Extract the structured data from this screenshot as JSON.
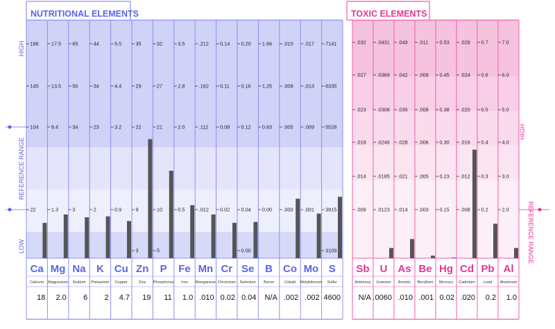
{
  "nutritional": {
    "title": "NUTRITIONAL ELEMENTS",
    "side_labels": {
      "high": "HIGH",
      "reference_range": "REFERENCE   RANGE",
      "low": "LOW"
    },
    "elements": [
      {
        "symbol": "Ca",
        "name": "Calcium",
        "value": "18",
        "ticks": [
          "186",
          "145",
          "104",
          "22"
        ]
      },
      {
        "symbol": "Mg",
        "name": "Magnesium",
        "value": "2.0",
        "ticks": [
          "17.5",
          "13.5",
          "9.4",
          "1.3"
        ]
      },
      {
        "symbol": "Na",
        "name": "Sodium",
        "value": "6",
        "ticks": [
          "65",
          "50",
          "34",
          "3"
        ]
      },
      {
        "symbol": "K",
        "name": "Potassium",
        "value": "2",
        "ticks": [
          "44",
          "34",
          "23",
          "2"
        ]
      },
      {
        "symbol": "Cu",
        "name": "Copper",
        "value": "4.7",
        "ticks": [
          "5.5",
          "4.4",
          "3.2",
          "0.9"
        ]
      },
      {
        "symbol": "Zn",
        "name": "Zinc",
        "value": "19",
        "ticks": [
          "35",
          "29",
          "22",
          "9",
          "3"
        ]
      },
      {
        "symbol": "P",
        "name": "Phosphorus",
        "value": "11",
        "ticks": [
          "32",
          "27",
          "21",
          "10",
          "5"
        ]
      },
      {
        "symbol": "Fe",
        "name": "Iron",
        "value": "1.0",
        "ticks": [
          "3.5",
          "2.8",
          "2.0",
          "0.5"
        ]
      },
      {
        "symbol": "Mn",
        "name": "Manganese",
        "value": ".010",
        "ticks": [
          ".212",
          ".162",
          ".112",
          ".012"
        ]
      },
      {
        "symbol": "Cr",
        "name": "Chromium",
        "value": "0.02",
        "ticks": [
          "0.14",
          "0.11",
          "0.08",
          "0.02"
        ]
      },
      {
        "symbol": "Se",
        "name": "Selenium",
        "value": "0.04",
        "ticks": [
          "0.20",
          "0.16",
          "0.12",
          "0.04",
          "0.00"
        ]
      },
      {
        "symbol": "B",
        "name": "Boron",
        "value": "N/A",
        "ticks": [
          "1.66",
          "1.25",
          "0.83",
          "0.00"
        ]
      },
      {
        "symbol": "Co",
        "name": "Cobalt",
        "value": ".002",
        "ticks": [
          ".010",
          ".008",
          ".005",
          ".000"
        ]
      },
      {
        "symbol": "Mo",
        "name": "Molybdenum",
        "value": ".002",
        "ticks": [
          ".017",
          ".013",
          ".009",
          ".001"
        ]
      },
      {
        "symbol": "S",
        "name": "Sulfur",
        "value": "4600",
        "ticks": [
          "7141",
          "6335",
          "5528",
          "3915",
          "3109"
        ]
      }
    ]
  },
  "toxic": {
    "title": "TOXIC ELEMENTS",
    "side_labels": {
      "high": "HIGH",
      "reference_range": "REFERENCE   RANGE"
    },
    "elements": [
      {
        "symbol": "Sb",
        "name": "Antimony",
        "value": "N/A",
        "ticks": [
          ".032",
          ".027",
          ".023",
          ".018",
          ".014",
          ".009"
        ]
      },
      {
        "symbol": "U",
        "name": "Uranium",
        "value": ".0060",
        "ticks": [
          ".0431",
          ".0369",
          ".0308",
          ".0246",
          ".0185",
          ".0123"
        ]
      },
      {
        "symbol": "As",
        "name": "Arsenic",
        "value": ".010",
        "ticks": [
          ".049",
          ".042",
          ".035",
          ".028",
          ".021",
          ".014"
        ]
      },
      {
        "symbol": "Be",
        "name": "Beryllium",
        "value": ".001",
        "ticks": [
          ".011",
          ".009",
          ".008",
          ".006",
          ".005",
          ".003"
        ]
      },
      {
        "symbol": "Hg",
        "name": "Mercury",
        "value": "0.02",
        "ticks": [
          "0.53",
          "0.45",
          "0.38",
          "0.30",
          "0.23",
          "0.15"
        ]
      },
      {
        "symbol": "Cd",
        "name": "Cadmium",
        "value": ".020",
        "ticks": [
          ".028",
          ".024",
          ".020",
          ".016",
          ".012",
          ".008"
        ]
      },
      {
        "symbol": "Pb",
        "name": "Lead",
        "value": "0.2",
        "ticks": [
          "0.7",
          "0.6",
          "0.5",
          "0.4",
          "0.3",
          "0.2"
        ]
      },
      {
        "symbol": "Al",
        "name": "Aluminum",
        "value": "1.0",
        "ticks": [
          "7.0",
          "6.0",
          "5.0",
          "4.0",
          "3.0",
          "2.0"
        ]
      }
    ]
  },
  "chart_data": [
    {
      "type": "bar",
      "categories": [
        "Ca",
        "Mg",
        "Na",
        "K",
        "Cu",
        "Zn",
        "P",
        "Fe",
        "Mn",
        "Cr",
        "Se",
        "B",
        "Co",
        "Mo",
        "S"
      ],
      "values": [
        18,
        2.0,
        6,
        2,
        4.7,
        19,
        11,
        1.0,
        0.01,
        0.02,
        0.04,
        null,
        0.002,
        0.002,
        4600
      ],
      "title": "NUTRITIONAL ELEMENTS",
      "bar_levels": [
        0.38,
        0.47,
        0.44,
        0.45,
        0.4,
        1.28,
        0.94,
        0.57,
        0.47,
        0.38,
        0.39,
        0.0,
        0.64,
        0.48,
        0.66
      ],
      "colors": {
        "panel": "#c9cbf5",
        "border": "#8a8ff0",
        "title": "#5a64e6",
        "bar": "#555555"
      }
    },
    {
      "type": "bar",
      "categories": [
        "Sb",
        "U",
        "As",
        "Be",
        "Hg",
        "Cd",
        "Pb",
        "Al"
      ],
      "values": [
        null,
        0.006,
        0.01,
        0.001,
        0.02,
        0.02,
        0.2,
        1.0
      ],
      "title": "TOXIC ELEMENTS",
      "bar_levels": [
        0.0,
        0.08,
        0.15,
        0.02,
        0.005,
        0.85,
        0.27,
        0.08
      ],
      "colors": {
        "panel": "#f4b7d9",
        "border": "#ee5cae",
        "title": "#e53593",
        "bar": "#555555"
      }
    }
  ]
}
